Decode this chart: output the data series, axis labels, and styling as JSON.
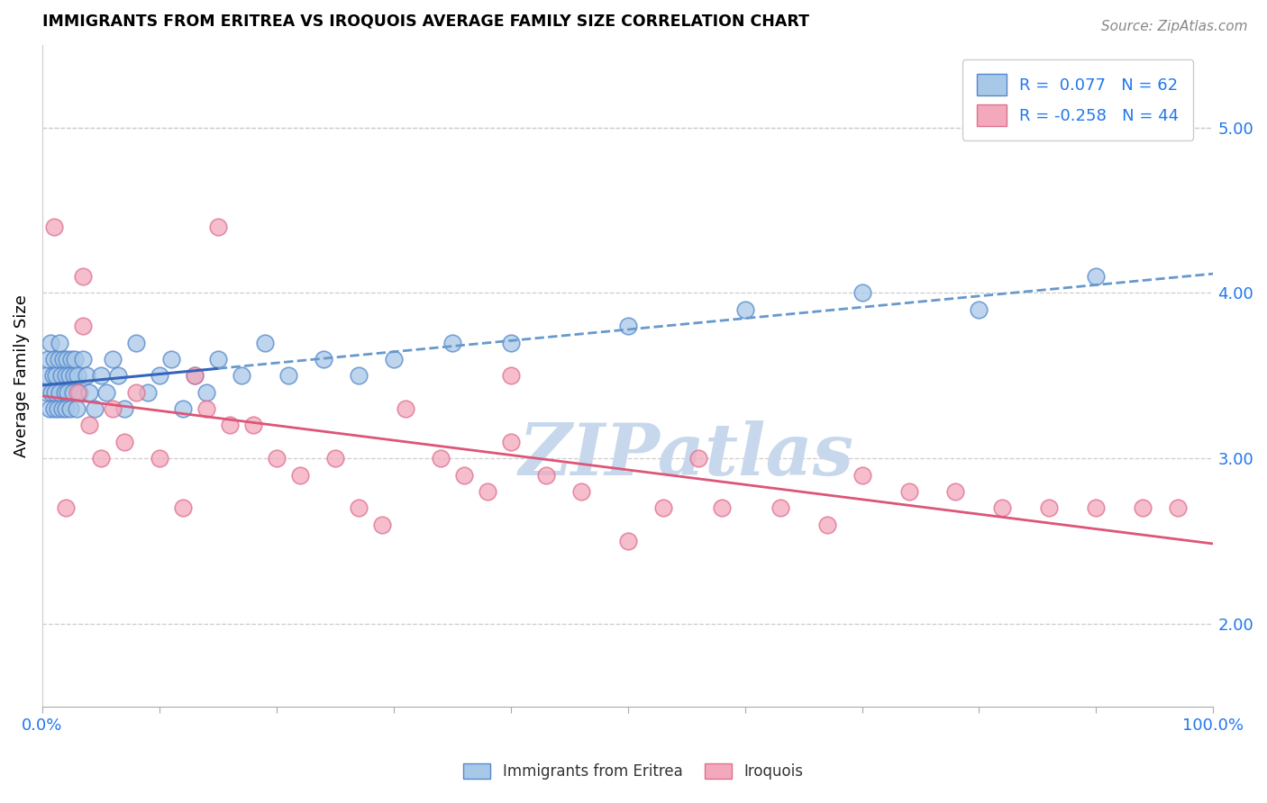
{
  "title": "IMMIGRANTS FROM ERITREA VS IROQUOIS AVERAGE FAMILY SIZE CORRELATION CHART",
  "source": "Source: ZipAtlas.com",
  "ylabel": "Average Family Size",
  "right_yticks": [
    2.0,
    3.0,
    4.0,
    5.0
  ],
  "legend_blue_label": "Immigrants from Eritrea",
  "legend_pink_label": "Iroquois",
  "blue_R": "0.077",
  "blue_N": "62",
  "pink_R": "-0.258",
  "pink_N": "44",
  "blue_scatter_color": "#a8c8e8",
  "pink_scatter_color": "#f4a8bc",
  "blue_edge_color": "#5588cc",
  "pink_edge_color": "#dd7090",
  "trendline_blue_solid_color": "#3366bb",
  "trendline_blue_dash_color": "#6699cc",
  "trendline_pink_color": "#dd5577",
  "watermark": "ZIPatlas",
  "watermark_color": "#c8d8ec",
  "ylim_low": 1.5,
  "ylim_high": 5.5,
  "blue_x": [
    0.3,
    0.4,
    0.5,
    0.6,
    0.7,
    0.8,
    0.9,
    1.0,
    1.0,
    1.1,
    1.2,
    1.3,
    1.4,
    1.5,
    1.5,
    1.6,
    1.7,
    1.8,
    1.9,
    2.0,
    2.0,
    2.1,
    2.2,
    2.3,
    2.4,
    2.5,
    2.6,
    2.7,
    2.8,
    2.9,
    3.0,
    3.2,
    3.5,
    3.8,
    4.0,
    4.5,
    5.0,
    5.5,
    6.0,
    6.5,
    7.0,
    8.0,
    9.0,
    10.0,
    11.0,
    12.0,
    13.0,
    14.0,
    15.0,
    17.0,
    19.0,
    21.0,
    24.0,
    27.0,
    30.0,
    35.0,
    40.0,
    50.0,
    60.0,
    70.0,
    80.0,
    90.0
  ],
  "blue_y": [
    3.5,
    3.4,
    3.6,
    3.3,
    3.7,
    3.4,
    3.5,
    3.3,
    3.6,
    3.4,
    3.5,
    3.3,
    3.6,
    3.4,
    3.7,
    3.5,
    3.3,
    3.6,
    3.4,
    3.5,
    3.3,
    3.6,
    3.4,
    3.5,
    3.3,
    3.6,
    3.4,
    3.5,
    3.6,
    3.3,
    3.5,
    3.4,
    3.6,
    3.5,
    3.4,
    3.3,
    3.5,
    3.4,
    3.6,
    3.5,
    3.3,
    3.7,
    3.4,
    3.5,
    3.6,
    3.3,
    3.5,
    3.4,
    3.6,
    3.5,
    3.7,
    3.5,
    3.6,
    3.5,
    3.6,
    3.7,
    3.7,
    3.8,
    3.9,
    4.0,
    3.9,
    4.1
  ],
  "pink_x": [
    1.0,
    2.0,
    3.0,
    4.0,
    5.0,
    6.0,
    7.0,
    8.0,
    10.0,
    12.0,
    13.0,
    14.0,
    16.0,
    18.0,
    20.0,
    22.0,
    25.0,
    27.0,
    29.0,
    31.0,
    34.0,
    36.0,
    38.0,
    40.0,
    43.0,
    46.0,
    50.0,
    53.0,
    56.0,
    58.0,
    63.0,
    67.0,
    70.0,
    74.0,
    78.0,
    82.0,
    86.0,
    90.0,
    94.0,
    97.0,
    3.5,
    3.5,
    15.0,
    40.0
  ],
  "pink_y": [
    4.4,
    2.7,
    3.4,
    3.2,
    3.0,
    3.3,
    3.1,
    3.4,
    3.0,
    2.7,
    3.5,
    3.3,
    3.2,
    3.2,
    3.0,
    2.9,
    3.0,
    2.7,
    2.6,
    3.3,
    3.0,
    2.9,
    2.8,
    3.1,
    2.9,
    2.8,
    2.5,
    2.7,
    3.0,
    2.7,
    2.7,
    2.6,
    2.9,
    2.8,
    2.8,
    2.7,
    2.7,
    2.7,
    2.7,
    2.7,
    4.1,
    3.8,
    4.4,
    3.5
  ]
}
